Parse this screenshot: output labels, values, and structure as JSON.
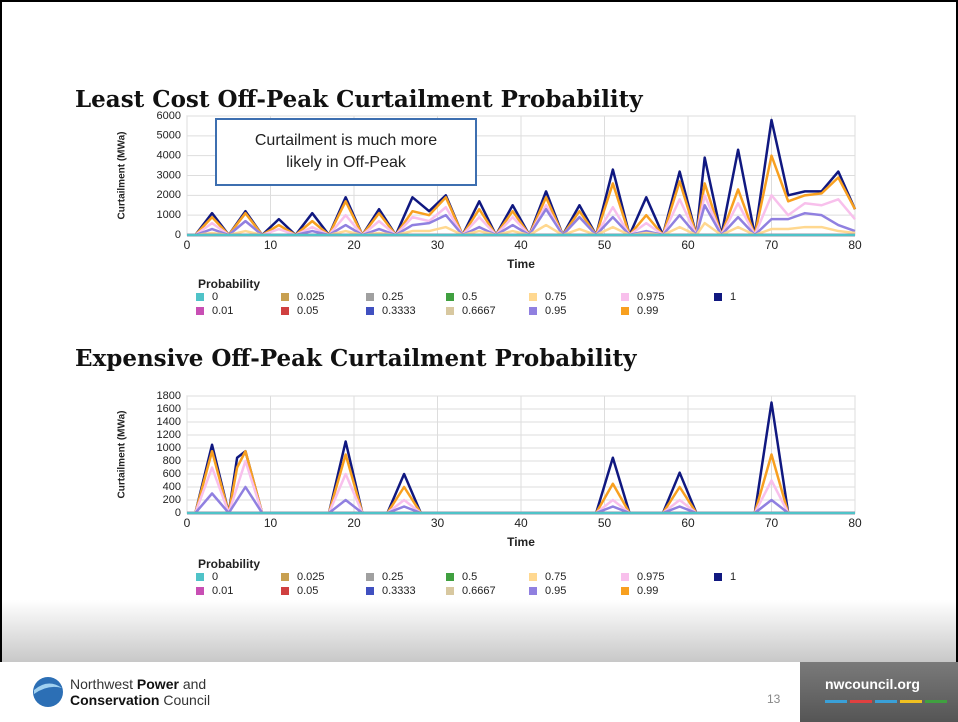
{
  "chart_data": [
    {
      "type": "line",
      "title": "Least Cost Off-Peak Curtailment Probability",
      "y_label": "Curtailment (MWa)",
      "x_label": "Time",
      "legend_title": "Probability",
      "annotation": "Curtailment is much more likely in Off-Peak",
      "xlim": [
        0,
        80
      ],
      "xticks": [
        0,
        10,
        20,
        30,
        40,
        50,
        60,
        70,
        80
      ],
      "ylim": [
        0,
        6000
      ],
      "yticks": [
        0,
        1000,
        2000,
        3000,
        4000,
        5000,
        6000
      ],
      "grid": true,
      "x": [
        0,
        1,
        3,
        5,
        7,
        9,
        11,
        13,
        15,
        17,
        19,
        21,
        23,
        25,
        27,
        29,
        31,
        33,
        35,
        37,
        39,
        41,
        43,
        45,
        47,
        49,
        51,
        53,
        55,
        57,
        59,
        61,
        62,
        64,
        66,
        68,
        70,
        72,
        74,
        76,
        78,
        80
      ],
      "series": [
        {
          "name": "0",
          "color": "#4fc3c8",
          "values": [
            0,
            0,
            0,
            0,
            0,
            0,
            0,
            0,
            0,
            0,
            0,
            0,
            0,
            0,
            0,
            0,
            0,
            0,
            0,
            0,
            0,
            0,
            0,
            0,
            0,
            0,
            0,
            0,
            0,
            0,
            0,
            0,
            0,
            0,
            0,
            0,
            0,
            0,
            0,
            0,
            0,
            0
          ]
        },
        {
          "name": "0.01",
          "color": "#c84fb4",
          "values": [
            0,
            0,
            0,
            0,
            0,
            0,
            0,
            0,
            0,
            0,
            0,
            0,
            0,
            0,
            0,
            0,
            0,
            0,
            0,
            0,
            0,
            0,
            0,
            0,
            0,
            0,
            0,
            0,
            0,
            0,
            0,
            0,
            0,
            0,
            0,
            0,
            0,
            0,
            0,
            0,
            0,
            0
          ]
        },
        {
          "name": "0.025",
          "color": "#c8a050",
          "values": [
            0,
            0,
            0,
            0,
            0,
            0,
            0,
            0,
            0,
            0,
            0,
            0,
            0,
            0,
            0,
            0,
            0,
            0,
            0,
            0,
            0,
            0,
            0,
            0,
            0,
            0,
            0,
            0,
            0,
            0,
            0,
            0,
            0,
            0,
            0,
            0,
            0,
            0,
            0,
            0,
            0,
            0
          ]
        },
        {
          "name": "0.05",
          "color": "#d04040",
          "values": [
            0,
            0,
            0,
            0,
            0,
            0,
            0,
            0,
            0,
            0,
            0,
            0,
            0,
            0,
            0,
            0,
            0,
            0,
            0,
            0,
            0,
            0,
            0,
            0,
            0,
            0,
            0,
            0,
            0,
            0,
            0,
            0,
            0,
            0,
            0,
            0,
            0,
            0,
            0,
            0,
            0,
            0
          ]
        },
        {
          "name": "0.25",
          "color": "#a0a0a0",
          "values": [
            0,
            0,
            0,
            0,
            0,
            0,
            0,
            0,
            0,
            0,
            0,
            0,
            0,
            0,
            0,
            0,
            0,
            0,
            0,
            0,
            0,
            0,
            0,
            0,
            0,
            0,
            0,
            0,
            0,
            0,
            0,
            0,
            0,
            0,
            0,
            0,
            0,
            0,
            0,
            0,
            0,
            0
          ]
        },
        {
          "name": "0.3333",
          "color": "#4050c0",
          "values": [
            0,
            0,
            0,
            0,
            0,
            0,
            0,
            0,
            0,
            0,
            0,
            0,
            0,
            0,
            0,
            0,
            0,
            0,
            0,
            0,
            0,
            0,
            0,
            0,
            0,
            0,
            0,
            0,
            0,
            0,
            0,
            0,
            0,
            0,
            0,
            0,
            0,
            0,
            0,
            0,
            0,
            0
          ]
        },
        {
          "name": "0.5",
          "color": "#40a040",
          "values": [
            0,
            0,
            0,
            0,
            0,
            0,
            0,
            0,
            0,
            0,
            0,
            0,
            0,
            0,
            0,
            0,
            0,
            0,
            0,
            0,
            0,
            0,
            0,
            0,
            0,
            0,
            0,
            0,
            0,
            0,
            0,
            0,
            0,
            0,
            0,
            0,
            0,
            0,
            0,
            0,
            0,
            0
          ]
        },
        {
          "name": "0.6667",
          "color": "#d8c8a0",
          "values": [
            0,
            0,
            0,
            0,
            0,
            0,
            0,
            0,
            0,
            0,
            0,
            0,
            0,
            0,
            0,
            0,
            0,
            0,
            0,
            0,
            0,
            0,
            0,
            0,
            0,
            0,
            0,
            0,
            0,
            0,
            0,
            0,
            0,
            0,
            0,
            0,
            0,
            0,
            0,
            0,
            0,
            0
          ]
        },
        {
          "name": "0.75",
          "color": "#ffd890",
          "values": [
            0,
            0,
            100,
            0,
            200,
            0,
            0,
            0,
            0,
            0,
            200,
            0,
            100,
            0,
            200,
            200,
            400,
            0,
            200,
            0,
            200,
            0,
            500,
            0,
            300,
            0,
            400,
            0,
            100,
            0,
            400,
            0,
            600,
            0,
            400,
            0,
            300,
            300,
            400,
            400,
            200,
            100
          ]
        },
        {
          "name": "0.95",
          "color": "#9080e0",
          "values": [
            0,
            0,
            300,
            0,
            700,
            0,
            0,
            0,
            200,
            0,
            500,
            0,
            300,
            0,
            500,
            600,
            1000,
            0,
            400,
            0,
            500,
            0,
            1300,
            0,
            900,
            0,
            900,
            0,
            200,
            0,
            1000,
            0,
            1500,
            0,
            900,
            0,
            800,
            800,
            1100,
            1000,
            500,
            200
          ]
        },
        {
          "name": "0.975",
          "color": "#f8c0ec",
          "values": [
            0,
            0,
            600,
            0,
            700,
            0,
            300,
            0,
            400,
            0,
            1000,
            0,
            700,
            0,
            900,
            700,
            1400,
            0,
            900,
            0,
            900,
            0,
            1500,
            0,
            900,
            0,
            1400,
            0,
            600,
            0,
            1800,
            0,
            2000,
            0,
            1600,
            0,
            2000,
            1000,
            1600,
            1500,
            1800,
            800
          ]
        },
        {
          "name": "0.99",
          "color": "#f8a020",
          "values": [
            0,
            0,
            900,
            0,
            1100,
            0,
            500,
            0,
            700,
            0,
            1700,
            0,
            1100,
            0,
            1200,
            1000,
            1900,
            0,
            1300,
            0,
            1200,
            0,
            1900,
            0,
            1200,
            0,
            2600,
            0,
            1000,
            0,
            2700,
            0,
            2600,
            0,
            2300,
            0,
            4000,
            1700,
            2000,
            2100,
            2900,
            1300
          ]
        },
        {
          "name": "1",
          "color": "#101880",
          "values": [
            0,
            0,
            1100,
            0,
            1200,
            0,
            800,
            0,
            1100,
            0,
            1900,
            0,
            1300,
            0,
            1900,
            1200,
            2000,
            0,
            1700,
            0,
            1500,
            0,
            2200,
            0,
            1500,
            0,
            3300,
            0,
            1900,
            0,
            3200,
            0,
            3900,
            0,
            4300,
            0,
            5800,
            2000,
            2200,
            2200,
            3200,
            1300
          ]
        }
      ]
    },
    {
      "type": "line",
      "title": "Expensive Off-Peak Curtailment Probability",
      "y_label": "Curtailment (MWa)",
      "x_label": "Time",
      "legend_title": "Probability",
      "xlim": [
        0,
        80
      ],
      "xticks": [
        0,
        10,
        20,
        30,
        40,
        50,
        60,
        70,
        80
      ],
      "ylim": [
        0,
        1800
      ],
      "yticks": [
        0,
        200,
        400,
        600,
        800,
        1000,
        1200,
        1400,
        1600,
        1800
      ],
      "grid": true,
      "x": [
        0,
        1,
        3,
        5,
        6,
        7,
        9,
        17,
        19,
        21,
        24,
        26,
        28,
        49,
        51,
        53,
        57,
        59,
        61,
        68,
        70,
        72,
        80
      ],
      "series": [
        {
          "name": "0",
          "color": "#4fc3c8",
          "values": [
            0,
            0,
            0,
            0,
            0,
            0,
            0,
            0,
            0,
            0,
            0,
            0,
            0,
            0,
            0,
            0,
            0,
            0,
            0,
            0,
            0,
            0,
            0
          ]
        },
        {
          "name": "0.01",
          "color": "#c84fb4",
          "values": [
            0,
            0,
            0,
            0,
            0,
            0,
            0,
            0,
            0,
            0,
            0,
            0,
            0,
            0,
            0,
            0,
            0,
            0,
            0,
            0,
            0,
            0,
            0
          ]
        },
        {
          "name": "0.025",
          "color": "#c8a050",
          "values": [
            0,
            0,
            0,
            0,
            0,
            0,
            0,
            0,
            0,
            0,
            0,
            0,
            0,
            0,
            0,
            0,
            0,
            0,
            0,
            0,
            0,
            0,
            0
          ]
        },
        {
          "name": "0.05",
          "color": "#d04040",
          "values": [
            0,
            0,
            0,
            0,
            0,
            0,
            0,
            0,
            0,
            0,
            0,
            0,
            0,
            0,
            0,
            0,
            0,
            0,
            0,
            0,
            0,
            0,
            0
          ]
        },
        {
          "name": "0.25",
          "color": "#a0a0a0",
          "values": [
            0,
            0,
            0,
            0,
            0,
            0,
            0,
            0,
            0,
            0,
            0,
            0,
            0,
            0,
            0,
            0,
            0,
            0,
            0,
            0,
            0,
            0,
            0
          ]
        },
        {
          "name": "0.3333",
          "color": "#4050c0",
          "values": [
            0,
            0,
            0,
            0,
            0,
            0,
            0,
            0,
            0,
            0,
            0,
            0,
            0,
            0,
            0,
            0,
            0,
            0,
            0,
            0,
            0,
            0,
            0
          ]
        },
        {
          "name": "0.5",
          "color": "#40a040",
          "values": [
            0,
            0,
            0,
            0,
            0,
            0,
            0,
            0,
            0,
            0,
            0,
            0,
            0,
            0,
            0,
            0,
            0,
            0,
            0,
            0,
            0,
            0,
            0
          ]
        },
        {
          "name": "0.6667",
          "color": "#d8c8a0",
          "values": [
            0,
            0,
            0,
            0,
            0,
            0,
            0,
            0,
            0,
            0,
            0,
            0,
            0,
            0,
            0,
            0,
            0,
            0,
            0,
            0,
            0,
            0,
            0
          ]
        },
        {
          "name": "0.75",
          "color": "#ffd890",
          "values": [
            0,
            0,
            0,
            0,
            0,
            0,
            0,
            0,
            0,
            0,
            0,
            0,
            0,
            0,
            0,
            0,
            0,
            0,
            0,
            0,
            0,
            0,
            0
          ]
        },
        {
          "name": "0.95",
          "color": "#9080e0",
          "values": [
            0,
            0,
            300,
            0,
            200,
            400,
            0,
            0,
            200,
            0,
            0,
            100,
            0,
            0,
            100,
            0,
            0,
            100,
            0,
            0,
            200,
            0,
            0
          ]
        },
        {
          "name": "0.975",
          "color": "#f8c0ec",
          "values": [
            0,
            0,
            700,
            0,
            400,
            800,
            0,
            0,
            600,
            0,
            0,
            200,
            0,
            0,
            200,
            0,
            0,
            200,
            0,
            0,
            500,
            0,
            0
          ]
        },
        {
          "name": "0.99",
          "color": "#f8a020",
          "values": [
            0,
            0,
            950,
            0,
            700,
            950,
            0,
            0,
            900,
            0,
            0,
            400,
            0,
            0,
            450,
            0,
            0,
            400,
            0,
            0,
            900,
            0,
            0
          ]
        },
        {
          "name": "1",
          "color": "#101880",
          "values": [
            0,
            0,
            1050,
            0,
            850,
            950,
            0,
            0,
            1100,
            0,
            0,
            600,
            0,
            0,
            850,
            0,
            0,
            620,
            0,
            0,
            1700,
            0,
            0
          ]
        }
      ]
    }
  ],
  "footer": {
    "org": [
      [
        "Northwest",
        "Power",
        "and"
      ],
      [
        "Conservation",
        "Council"
      ]
    ],
    "page_number": 13,
    "url": "nwcouncil.org"
  }
}
